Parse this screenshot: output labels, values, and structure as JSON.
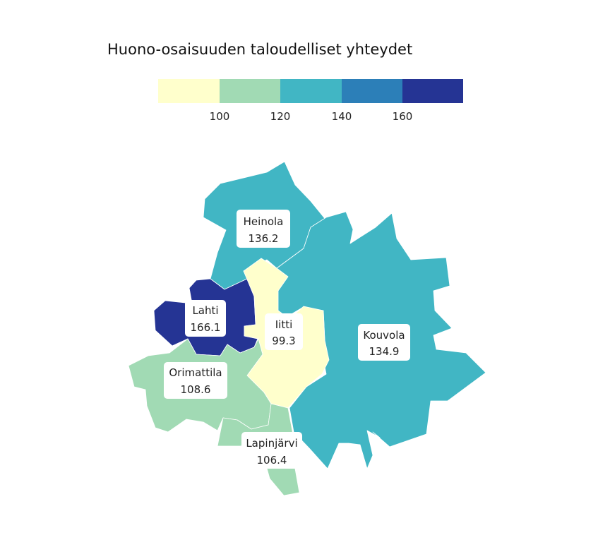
{
  "title": "Huono-osaisuuden taloudelliset yhteydet",
  "legend": {
    "bins": [
      {
        "color": "#ffffcc"
      },
      {
        "color": "#a1dab4"
      },
      {
        "color": "#41b6c4"
      },
      {
        "color": "#2c7fb8"
      },
      {
        "color": "#253494"
      }
    ],
    "ticks": [
      "100",
      "120",
      "140",
      "160"
    ]
  },
  "regions": [
    {
      "id": "heinola",
      "name": "Heinola",
      "value": "136.2",
      "color": "#41b6c4"
    },
    {
      "id": "kouvola",
      "name": "Kouvola",
      "value": "134.9",
      "color": "#41b6c4"
    },
    {
      "id": "lahti",
      "name": "Lahti",
      "value": "166.1",
      "color": "#253494"
    },
    {
      "id": "iitti",
      "name": "Iitti",
      "value": "99.3",
      "color": "#ffffcc"
    },
    {
      "id": "orimattila",
      "name": "Orimattila",
      "value": "108.6",
      "color": "#a1dab4"
    },
    {
      "id": "lapinjarvi",
      "name": "Lapinjärvi",
      "value": "106.4",
      "color": "#a1dab4"
    }
  ]
}
